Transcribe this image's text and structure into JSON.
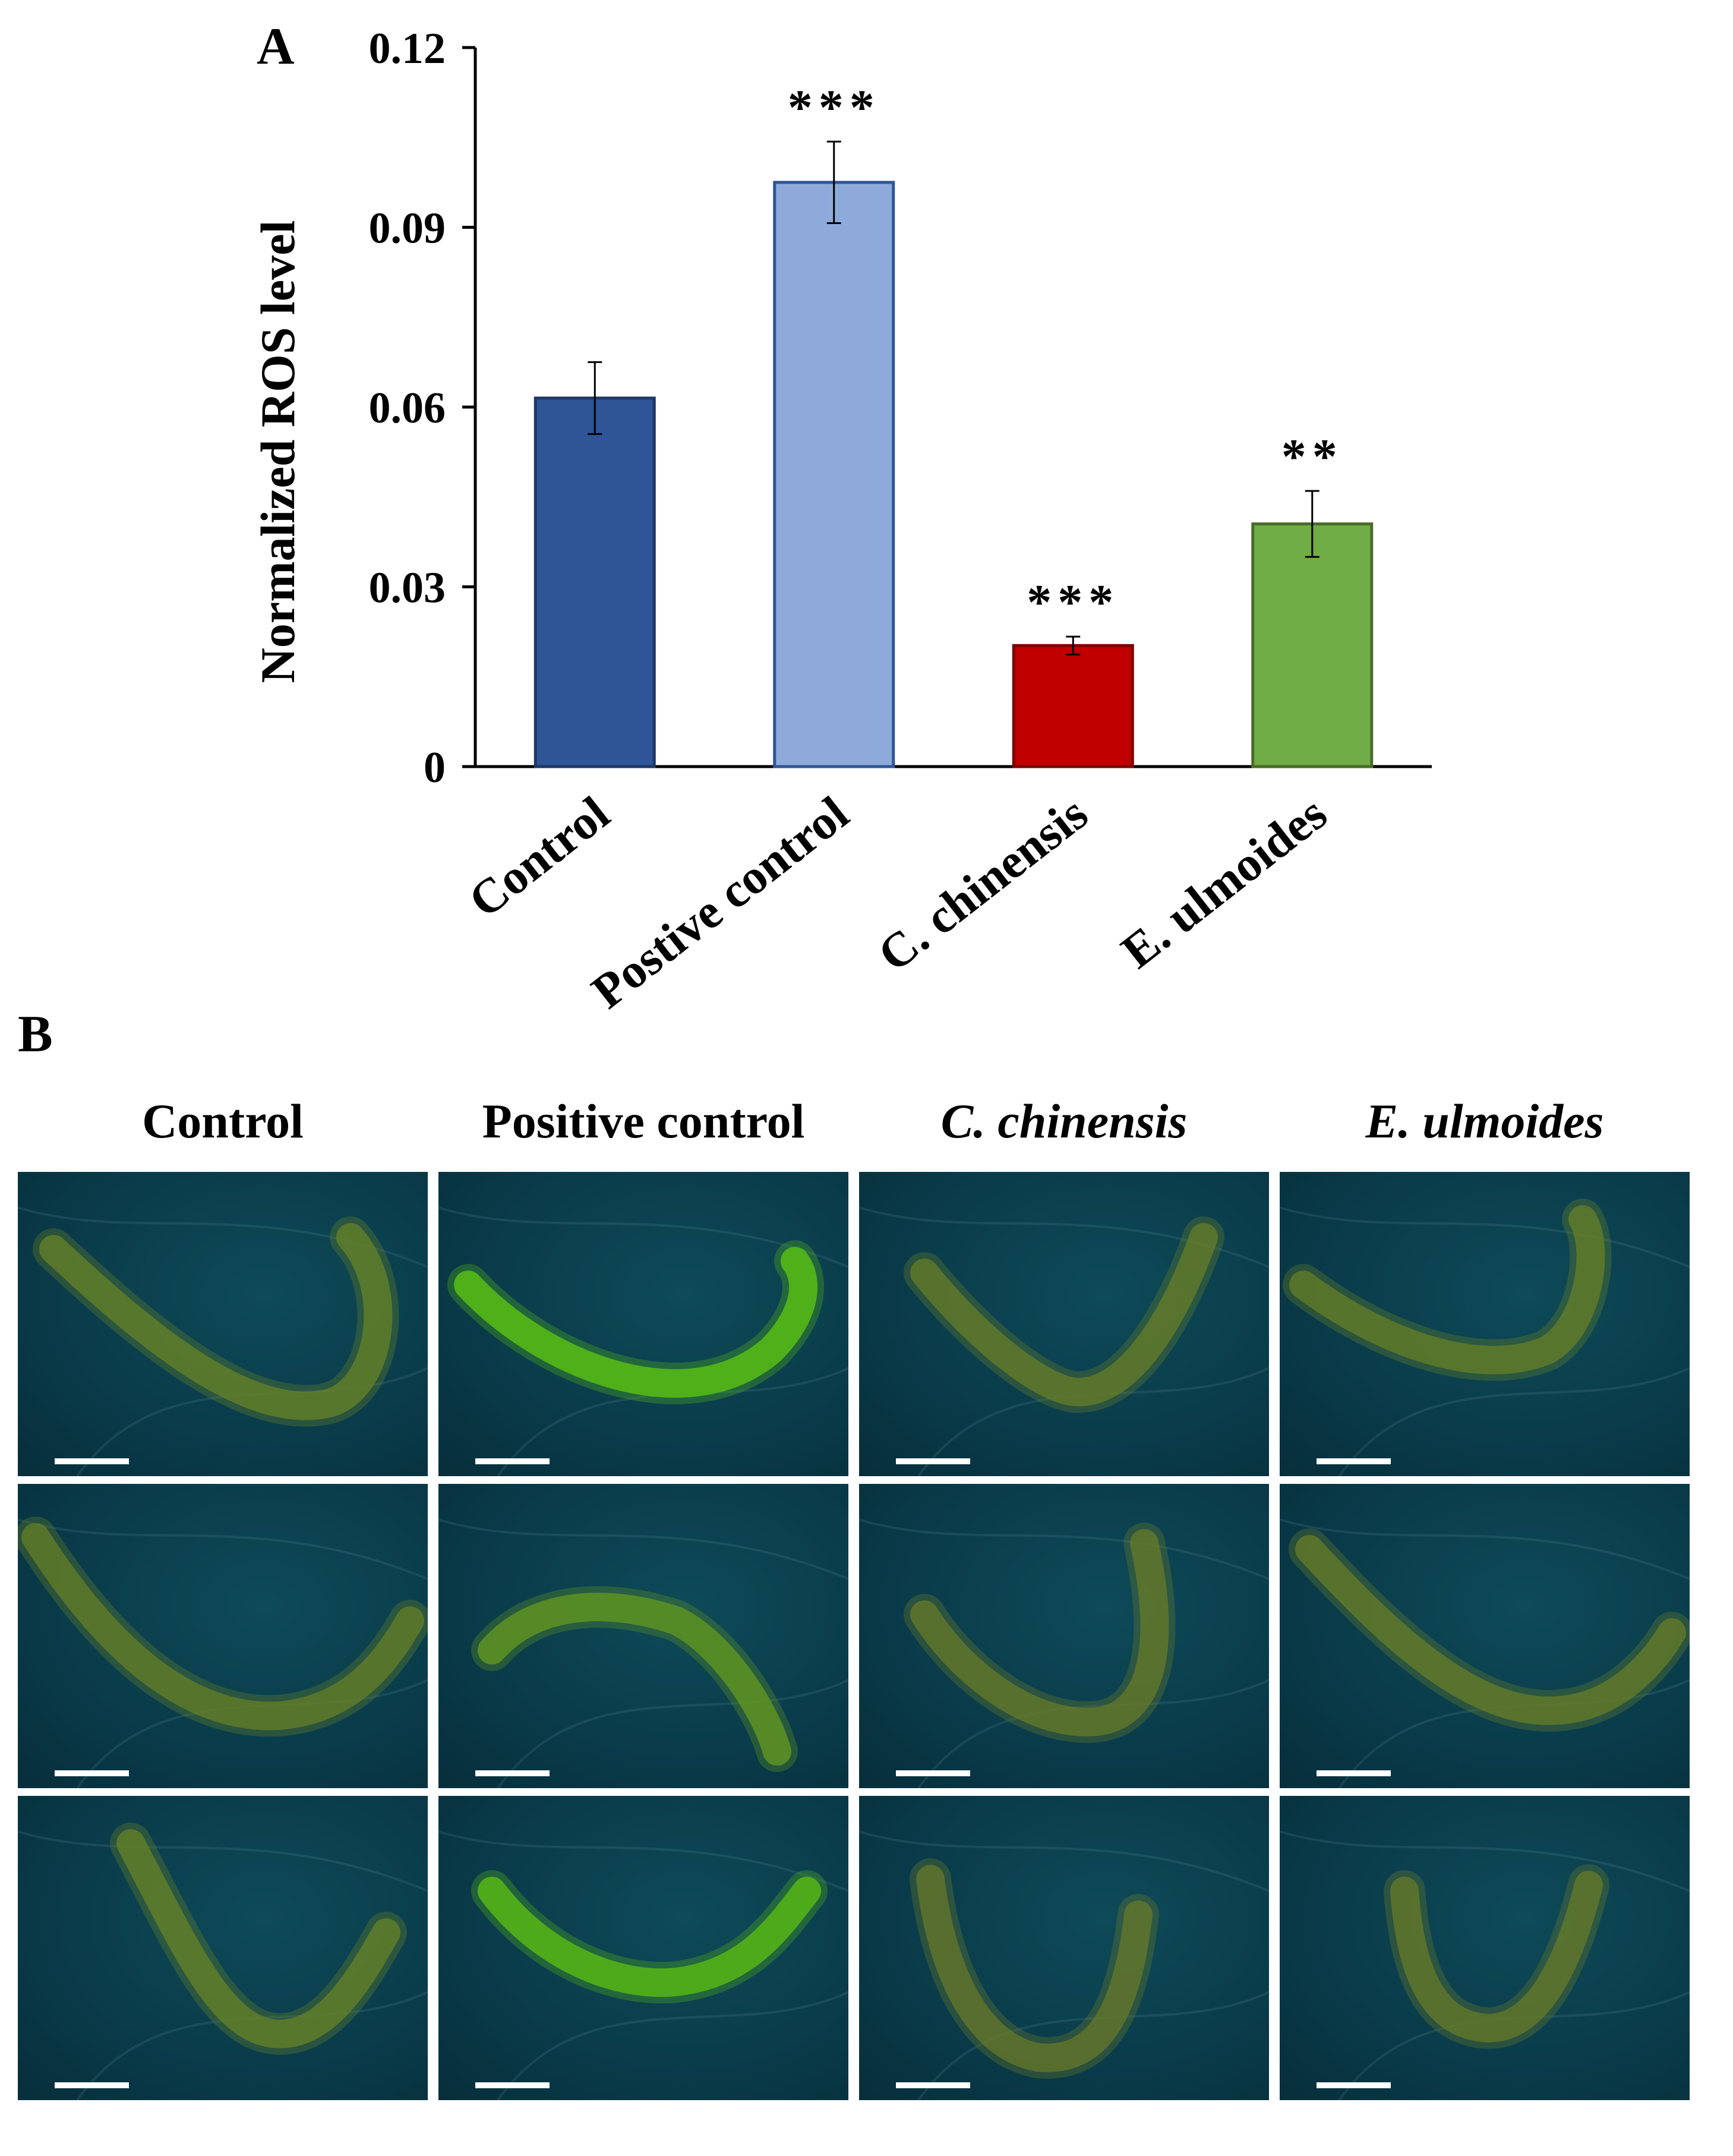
{
  "panel_a_label": "A",
  "panel_b_label": "B",
  "chart_data": {
    "type": "bar",
    "title": "",
    "xlabel": "",
    "ylabel": "Normalized ROS level",
    "ylim": [
      0,
      0.12
    ],
    "yticks": [
      "0",
      "0.03",
      "0.06",
      "0.09",
      "0.12"
    ],
    "ytick_values": [
      0,
      0.03,
      0.06,
      0.09,
      0.12
    ],
    "categories": [
      "Control",
      "Postive control",
      "C. chinensis",
      "E. ulmoides"
    ],
    "values": [
      0.0615,
      0.0975,
      0.0202,
      0.0405
    ],
    "errors": [
      0.006,
      0.0068,
      0.0015,
      0.0055
    ],
    "significance": [
      "",
      "***",
      "***",
      "**"
    ],
    "colors": {
      "fills": [
        "#2f5597",
        "#8eaadb",
        "#c00000",
        "#70ad47"
      ],
      "strokes": [
        "#1f3864",
        "#2f5597",
        "#7b0000",
        "#4a6a2a"
      ]
    },
    "grid": false,
    "legend": "none"
  },
  "micrograph_panel": {
    "columns": [
      {
        "title": "Control",
        "italic": false
      },
      {
        "title": "Positive control",
        "italic": false
      },
      {
        "title": "C. chinensis",
        "italic": true
      },
      {
        "title": "E. ulmoides",
        "italic": true
      }
    ],
    "rows": 3,
    "brightness": [
      [
        0.45,
        1.0,
        0.4,
        0.42
      ],
      [
        0.42,
        0.65,
        0.38,
        0.4
      ],
      [
        0.45,
        0.95,
        0.35,
        0.38
      ]
    ],
    "colors": {
      "background": "#0a3c4b",
      "worm_dim": "#6a7a28",
      "worm_bright": "#4fb01a",
      "scale_bar": "#ffffff"
    }
  }
}
